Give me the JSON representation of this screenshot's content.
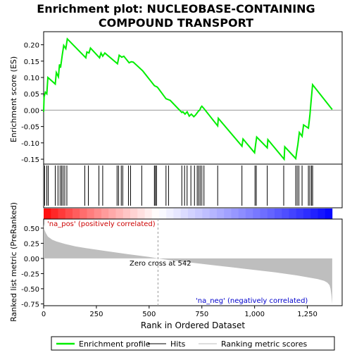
{
  "title_line1": "Enrichment plot: NUCLEOBASE-CONTAINING",
  "title_line2": "COMPOUND TRANSPORT",
  "colors": {
    "es_line": "#00ee00",
    "hits": "#000000",
    "metric_fill": "#bebebe",
    "pos_label": "#cc0000",
    "neg_label": "#0000cc",
    "zero_line": "#999999"
  },
  "top_panel": {
    "ylabel": "Enrichment score (ES)",
    "yticks": [
      0.2,
      0.15,
      0.1,
      0.05,
      0.0,
      -0.05,
      -0.1,
      -0.15
    ],
    "ytick_labels": [
      "0.20",
      "0.15",
      "0.10",
      "0.05",
      "0.00",
      "-0.05",
      "-0.10",
      "-0.15"
    ],
    "ylim": [
      -0.165,
      0.24
    ]
  },
  "bottom_panel": {
    "ylabel": "Ranked list metric (PreRanked)",
    "yticks": [
      0.5,
      0.25,
      0.0,
      -0.25,
      -0.5,
      -0.75
    ],
    "ytick_labels": [
      "0.50",
      "0.25",
      "0.00",
      "-0.25",
      "-0.50",
      "-0.75"
    ],
    "ylim": [
      -0.78,
      0.65
    ],
    "pos_label": "'na_pos' (positively correlated)",
    "neg_label": "'na_neg' (negatively correlated)",
    "zero_cross_label": "Zero cross at 542",
    "zero_cross": 542
  },
  "xaxis": {
    "xlabel": "Rank in Ordered Dataset",
    "xticks": [
      0,
      250,
      500,
      750,
      1000,
      1250
    ],
    "xtick_labels": [
      "0",
      "250",
      "500",
      "750",
      "1,000",
      "1,250"
    ],
    "xlim": [
      0,
      1415
    ]
  },
  "legend": {
    "items": [
      {
        "label": "Enrichment profile",
        "kind": "line",
        "color": "#00ee00"
      },
      {
        "label": "Hits",
        "kind": "line",
        "color": "#000000"
      },
      {
        "label": "Ranking metric scores",
        "kind": "line",
        "color": "#bebebe"
      }
    ]
  },
  "chart_data": {
    "type": "line",
    "n_genes": 1368,
    "es_profile": {
      "x": [
        0,
        2,
        8,
        15,
        20,
        55,
        60,
        70,
        75,
        80,
        88,
        95,
        105,
        112,
        200,
        205,
        215,
        222,
        265,
        272,
        280,
        290,
        350,
        358,
        370,
        380,
        405,
        415,
        425,
        470,
        525,
        530,
        536,
        542,
        580,
        600,
        655,
        660,
        670,
        680,
        690,
        700,
        712,
        720,
        728,
        735,
        740,
        745,
        750,
        760,
        825,
        828,
        940,
        945,
        1000,
        1005,
        1010,
        1060,
        1063,
        1140,
        1143,
        1195,
        1200,
        1205,
        1212,
        1225,
        1232,
        1255,
        1262,
        1268,
        1275,
        1368
      ],
      "y": [
        -0.005,
        0.04,
        0.055,
        0.05,
        0.1,
        0.08,
        0.115,
        0.102,
        0.14,
        0.13,
        0.168,
        0.198,
        0.188,
        0.218,
        0.16,
        0.178,
        0.175,
        0.19,
        0.16,
        0.175,
        0.165,
        0.175,
        0.142,
        0.168,
        0.162,
        0.165,
        0.145,
        0.148,
        0.147,
        0.12,
        0.075,
        0.073,
        0.072,
        0.068,
        0.035,
        0.03,
        -0.007,
        -0.005,
        -0.012,
        -0.005,
        -0.018,
        -0.012,
        -0.02,
        -0.015,
        -0.008,
        -0.002,
        0.0,
        0.008,
        0.012,
        0.005,
        -0.048,
        -0.025,
        -0.11,
        -0.088,
        -0.13,
        -0.105,
        -0.082,
        -0.115,
        -0.09,
        -0.15,
        -0.112,
        -0.148,
        -0.125,
        -0.105,
        -0.068,
        -0.08,
        -0.045,
        -0.055,
        -0.015,
        0.03,
        0.078,
        0.002
      ]
    },
    "hits": [
      5,
      15,
      22,
      55,
      68,
      78,
      85,
      92,
      100,
      110,
      195,
      212,
      262,
      280,
      348,
      355,
      368,
      375,
      402,
      412,
      465,
      525,
      530,
      535,
      580,
      592,
      655,
      668,
      680,
      698,
      715,
      728,
      735,
      742,
      750,
      760,
      825,
      940,
      1002,
      1008,
      1060,
      1138,
      1195,
      1202,
      1210,
      1225,
      1255,
      1262,
      1270,
      1275
    ],
    "metric_curve": {
      "x": [
        0,
        3,
        10,
        20,
        40,
        60,
        100,
        150,
        200,
        300,
        400,
        500,
        542,
        600,
        700,
        800,
        900,
        1000,
        1100,
        1200,
        1250,
        1300,
        1330,
        1345,
        1355,
        1360,
        1364,
        1368
      ],
      "y": [
        0.57,
        0.48,
        0.42,
        0.36,
        0.31,
        0.28,
        0.24,
        0.2,
        0.17,
        0.12,
        0.07,
        0.025,
        0.0,
        -0.03,
        -0.07,
        -0.11,
        -0.15,
        -0.19,
        -0.23,
        -0.28,
        -0.31,
        -0.34,
        -0.37,
        -0.4,
        -0.44,
        -0.5,
        -0.6,
        -0.75
      ]
    }
  }
}
